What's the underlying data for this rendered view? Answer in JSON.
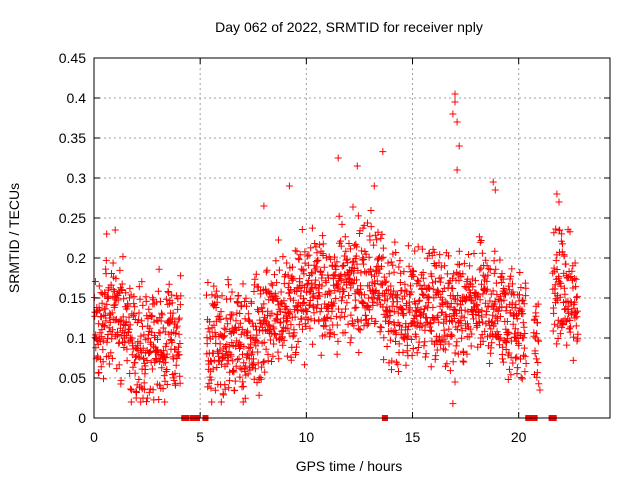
{
  "chart_data": {
    "type": "scatter",
    "title": "Day 062 of 2022, SRMTID for receiver nply",
    "xlabel": "GPS time / hours",
    "ylabel": "SRMTID / TECUs",
    "xlim": [
      0,
      24.3
    ],
    "ylim": [
      0,
      0.45
    ],
    "grid": true,
    "marker": "+",
    "color": "#ff0000",
    "x_ticks": [
      0,
      5,
      10,
      15,
      20
    ],
    "x_tick_labels": [
      "0",
      "5",
      "10",
      "15",
      "20"
    ],
    "y_ticks": [
      0,
      0.05,
      0.1,
      0.15,
      0.2,
      0.25,
      0.3,
      0.35,
      0.4,
      0.45
    ],
    "y_tick_labels": [
      "0",
      "0.05",
      "0.1",
      "0.15",
      "0.2",
      "0.25",
      "0.3",
      "0.35",
      "0.4",
      "0.45"
    ],
    "baseline_markers_x": [
      4.25,
      4.35,
      4.65,
      4.75,
      4.85,
      5.25,
      13.7,
      20.45,
      20.55,
      20.75,
      21.55,
      21.65
    ],
    "series": [
      {
        "name": "SRMTID",
        "trend": {
          "x": [
            0,
            0.5,
            1,
            1.5,
            2,
            2.5,
            3,
            3.5,
            4,
            4.5,
            5,
            5.5,
            6,
            6.5,
            7,
            7.5,
            8,
            8.5,
            9,
            9.5,
            10,
            10.5,
            11,
            11.5,
            12,
            12.5,
            13,
            13.5,
            14,
            14.5,
            15,
            15.5,
            16,
            16.5,
            17,
            17.5,
            18,
            18.5,
            19,
            19.5,
            20,
            20.5,
            21,
            21.5,
            22,
            22.5,
            22.8
          ],
          "y": [
            0.11,
            0.13,
            0.13,
            0.115,
            0.095,
            0.09,
            0.095,
            0.1,
            0.1,
            0.09,
            0.085,
            0.085,
            0.09,
            0.09,
            0.095,
            0.1,
            0.115,
            0.125,
            0.14,
            0.15,
            0.155,
            0.155,
            0.16,
            0.165,
            0.17,
            0.17,
            0.175,
            0.16,
            0.14,
            0.13,
            0.135,
            0.145,
            0.14,
            0.13,
            0.125,
            0.13,
            0.14,
            0.14,
            0.135,
            0.125,
            0.12,
            0.1,
            0.1,
            0.15,
            0.165,
            0.14,
            0.13
          ]
        },
        "gaps": [
          [
            4.1,
            5.3
          ],
          [
            20.35,
            20.7
          ],
          [
            20.95,
            21.6
          ],
          [
            22.9,
            24.3
          ]
        ],
        "scatter_amplitude": 0.055,
        "outliers": [
          {
            "x": 0.6,
            "y": 0.23
          },
          {
            "x": 1.0,
            "y": 0.235
          },
          {
            "x": 8.0,
            "y": 0.265
          },
          {
            "x": 9.2,
            "y": 0.29
          },
          {
            "x": 11.5,
            "y": 0.325
          },
          {
            "x": 12.4,
            "y": 0.315
          },
          {
            "x": 13.6,
            "y": 0.333
          },
          {
            "x": 13.2,
            "y": 0.29
          },
          {
            "x": 17.0,
            "y": 0.405
          },
          {
            "x": 17.0,
            "y": 0.395
          },
          {
            "x": 16.9,
            "y": 0.38
          },
          {
            "x": 17.1,
            "y": 0.37
          },
          {
            "x": 17.2,
            "y": 0.34
          },
          {
            "x": 17.1,
            "y": 0.31
          },
          {
            "x": 18.8,
            "y": 0.295
          },
          {
            "x": 18.9,
            "y": 0.285
          },
          {
            "x": 21.8,
            "y": 0.28
          },
          {
            "x": 21.9,
            "y": 0.27
          },
          {
            "x": 16.9,
            "y": 0.018
          },
          {
            "x": 17.0,
            "y": 0.045
          },
          {
            "x": 21.0,
            "y": 0.035
          }
        ]
      }
    ]
  }
}
